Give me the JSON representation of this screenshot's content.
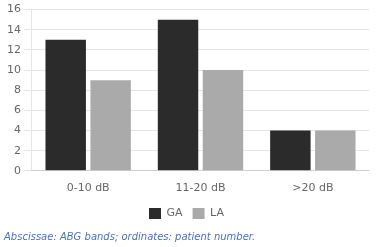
{
  "chart_data": {
    "type": "bar",
    "categories": [
      "0-10 dB",
      "11-20 dB",
      ">20 dB"
    ],
    "series": [
      {
        "name": "GA",
        "color": "#2b2b2b",
        "values": [
          13,
          15,
          4
        ]
      },
      {
        "name": "LA",
        "color": "#aaaaaa",
        "values": [
          9,
          10,
          4
        ]
      }
    ],
    "ylim": [
      0,
      16
    ],
    "yticks": [
      0,
      2,
      4,
      6,
      8,
      10,
      12,
      14,
      16
    ],
    "grid": true,
    "legend": "bottom",
    "caption": "Abscissae: ABG bands; ordinates: patient number.",
    "caption_color": "#4472c4"
  }
}
